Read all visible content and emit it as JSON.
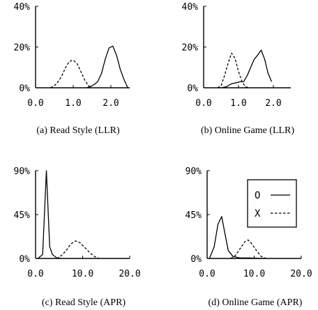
{
  "chart_data": [
    {
      "type": "line",
      "caption": "(a) Read Style (LLR)",
      "xlim": [
        0,
        2.5
      ],
      "ylim": [
        0,
        40
      ],
      "xticks": [
        {
          "value": 0,
          "label": "0.0"
        },
        {
          "value": 1,
          "label": "1.0"
        },
        {
          "value": 2,
          "label": "2.0"
        }
      ],
      "yticks": [
        {
          "value": 0,
          "label": "0%"
        },
        {
          "value": 20,
          "label": "20%"
        },
        {
          "value": 40,
          "label": "40%"
        }
      ],
      "series": [
        {
          "name": "O",
          "style": "solid",
          "x": [
            1.35,
            1.45,
            1.55,
            1.65,
            1.75,
            1.85,
            1.95,
            2.05,
            2.15,
            2.25,
            2.35,
            2.45
          ],
          "y": [
            0,
            0.5,
            1.5,
            3,
            7,
            14,
            19.5,
            20.5,
            16,
            9,
            4,
            0
          ]
        },
        {
          "name": "X",
          "style": "dashed",
          "x": [
            0.4,
            0.5,
            0.6,
            0.7,
            0.8,
            0.9,
            1.0,
            1.1,
            1.2,
            1.3,
            1.4,
            1.5
          ],
          "y": [
            0,
            1,
            3,
            6,
            10,
            13,
            13.5,
            12,
            8,
            4,
            1,
            0
          ]
        }
      ]
    },
    {
      "type": "line",
      "caption": "(b) Online Game (LLR)",
      "xlim": [
        0,
        2.5
      ],
      "ylim": [
        0,
        40
      ],
      "xticks": [
        {
          "value": 0,
          "label": "0.0"
        },
        {
          "value": 1,
          "label": "1.0"
        },
        {
          "value": 2,
          "label": "2.0"
        }
      ],
      "yticks": [
        {
          "value": 0,
          "label": "0%"
        },
        {
          "value": 20,
          "label": "20%"
        },
        {
          "value": 40,
          "label": "40%"
        }
      ],
      "series": [
        {
          "name": "O",
          "style": "solid",
          "x": [
            0.5,
            0.65,
            0.8,
            0.95,
            1.05,
            1.15,
            1.25,
            1.35,
            1.45,
            1.55,
            1.65,
            1.75,
            1.85,
            1.95
          ],
          "y": [
            0,
            0.5,
            2,
            2.5,
            3,
            3,
            6,
            10,
            14,
            16,
            18.5,
            14,
            7,
            3
          ]
        },
        {
          "name": "X",
          "style": "dashed",
          "x": [
            0.4,
            0.5,
            0.6,
            0.7,
            0.8,
            0.9,
            1.0,
            1.1,
            1.2,
            1.3
          ],
          "y": [
            0,
            1,
            6,
            12,
            17,
            14.5,
            8,
            3,
            0.5,
            0
          ]
        }
      ]
    },
    {
      "type": "line",
      "caption": "(c) Read Style (APR)",
      "xlim": [
        0,
        20
      ],
      "ylim": [
        0,
        90
      ],
      "xticks": [
        {
          "value": 0,
          "label": "0.0"
        },
        {
          "value": 10,
          "label": "10.0"
        },
        {
          "value": 20,
          "label": "20.0"
        }
      ],
      "yticks": [
        {
          "value": 0,
          "label": "0%"
        },
        {
          "value": 45,
          "label": "45%"
        },
        {
          "value": 90,
          "label": "90%"
        }
      ],
      "series": [
        {
          "name": "O",
          "style": "solid",
          "x": [
            0.5,
            1.5,
            2.3,
            3.0,
            3.6,
            4.5,
            5.5
          ],
          "y": [
            0,
            4,
            90,
            12,
            4,
            0.5,
            0
          ]
        },
        {
          "name": "X",
          "style": "dashed",
          "x": [
            4.5,
            5.5,
            6.5,
            7.5,
            8.5,
            9.5,
            10.5,
            11.5,
            12.5,
            13.5
          ],
          "y": [
            0,
            3,
            8,
            15,
            18,
            16,
            11,
            6,
            2,
            0
          ]
        }
      ]
    },
    {
      "type": "line",
      "caption": "(d) Online Game (APR)",
      "xlim": [
        0,
        20
      ],
      "ylim": [
        0,
        90
      ],
      "xticks": [
        {
          "value": 0,
          "label": "0.0"
        },
        {
          "value": 10,
          "label": "10.0"
        },
        {
          "value": 20,
          "label": "20.0"
        }
      ],
      "yticks": [
        {
          "value": 0,
          "label": "0%"
        },
        {
          "value": 45,
          "label": "45%"
        },
        {
          "value": 90,
          "label": "90%"
        }
      ],
      "legend": {
        "entries": [
          {
            "label": "O",
            "style": "solid"
          },
          {
            "label": "X",
            "style": "dashed"
          }
        ],
        "position": "top-right"
      },
      "series": [
        {
          "name": "O",
          "style": "solid",
          "x": [
            0.5,
            1.5,
            2.3,
            3.1,
            3.8,
            4.5,
            5.5,
            7.0,
            9.0,
            11.0,
            12.0
          ],
          "y": [
            0,
            12,
            35,
            43,
            25,
            8,
            2,
            0.5,
            0.5,
            0.2,
            0
          ]
        },
        {
          "name": "X",
          "style": "dashed",
          "x": [
            5.0,
            6.0,
            7.0,
            8.0,
            8.7,
            9.5,
            10.5,
            11.5,
            12.5
          ],
          "y": [
            0,
            3,
            10,
            17,
            19,
            15,
            8,
            2,
            0
          ]
        }
      ]
    }
  ]
}
